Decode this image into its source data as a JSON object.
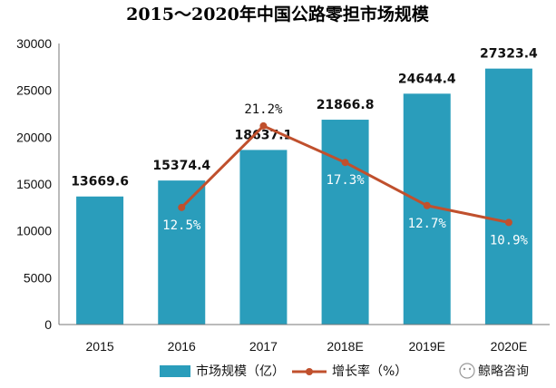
{
  "chart_data": {
    "type": "bar",
    "title": "2015～2020年中国公路零担市场规模",
    "categories": [
      "2015",
      "2016",
      "2017",
      "2018E",
      "2019E",
      "2020E"
    ],
    "y_ticks": [
      "0",
      "5000",
      "10000",
      "15000",
      "20000",
      "25000",
      "30000"
    ],
    "ylim": [
      0,
      30000
    ],
    "series": [
      {
        "name": "市场规模（亿）",
        "type": "bar",
        "color": "#2a9dbb",
        "values": [
          13669.6,
          15374.4,
          18637.1,
          21866.8,
          24644.4,
          27323.4
        ],
        "labels": [
          "13669.6",
          "15374.4",
          "18637.1",
          "21866.8",
          "24644.4",
          "27323.4"
        ]
      },
      {
        "name": "增长率（%）",
        "type": "line",
        "color": "#c0502d",
        "values": [
          null,
          12.5,
          21.2,
          17.3,
          12.7,
          10.9
        ],
        "labels": [
          "",
          "12.5%",
          "21.2%",
          "17.3%",
          "12.7%",
          "10.9%"
        ]
      }
    ],
    "legend_position": "bottom"
  },
  "watermark": {
    "brand": "鲸略咨询"
  }
}
